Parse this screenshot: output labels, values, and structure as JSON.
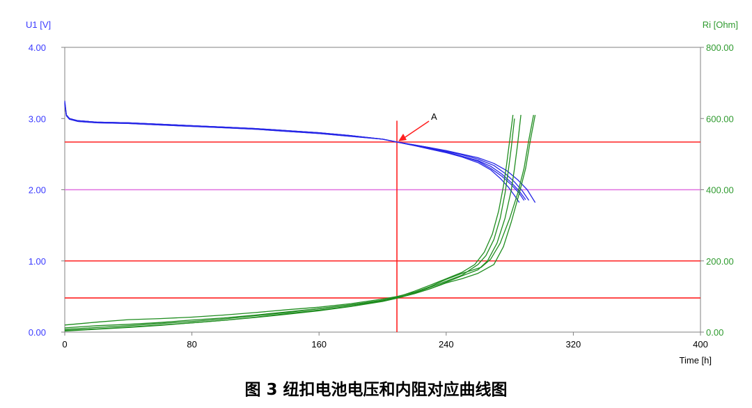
{
  "caption": "图 3 纽扣电池电压和内阻对应曲线图",
  "chart_data": {
    "type": "line",
    "title": "",
    "xlabel": "Time [h]",
    "ylabel_left": "U1 [V]",
    "ylabel_right": "Ri [Ohm]",
    "xlim": [
      0,
      400
    ],
    "ylim_left": [
      0,
      4
    ],
    "ylim_right": [
      0,
      800
    ],
    "x_ticks": [
      "0",
      "80",
      "160",
      "240",
      "320",
      "400"
    ],
    "y_left_ticks": [
      "0.00",
      "1.00",
      "2.00",
      "3.00",
      "4.00"
    ],
    "y_right_ticks": [
      "0.00",
      "200.00",
      "400.00",
      "600.00",
      "800.00"
    ],
    "grid": false,
    "colors": {
      "voltage": "#2626e6",
      "resistance": "#1e8c1e",
      "reference": "#ff2020",
      "threshold": "#e070e0",
      "left_axis": "#3a3aff",
      "right_axis": "#2e9a2e"
    },
    "reference_lines": [
      {
        "orientation": "horizontal",
        "axis": "left",
        "y": 2.67,
        "color": "#ff2020"
      },
      {
        "orientation": "horizontal",
        "axis": "left",
        "y": 2.0,
        "color": "#e070e0"
      },
      {
        "orientation": "horizontal",
        "axis": "left",
        "y": 1.0,
        "color": "#ff2020"
      },
      {
        "orientation": "horizontal",
        "axis": "left",
        "y": 0.48,
        "color": "#ff2020"
      },
      {
        "orientation": "vertical",
        "x": 209,
        "y_top": 2.97,
        "color": "#ff2020"
      }
    ],
    "annotations": [
      {
        "text": "A",
        "arrow_to": [
          209,
          2.67
        ],
        "color": "#ff2020"
      }
    ],
    "series": [
      {
        "axis": "left",
        "color": "#2626e6",
        "points": [
          [
            0,
            3.25
          ],
          [
            1,
            3.05
          ],
          [
            3,
            3.0
          ],
          [
            8,
            2.97
          ],
          [
            20,
            2.95
          ],
          [
            40,
            2.94
          ],
          [
            60,
            2.92
          ],
          [
            80,
            2.9
          ],
          [
            100,
            2.88
          ],
          [
            120,
            2.86
          ],
          [
            140,
            2.83
          ],
          [
            160,
            2.8
          ],
          [
            180,
            2.76
          ],
          [
            200,
            2.71
          ],
          [
            209,
            2.67
          ],
          [
            220,
            2.62
          ],
          [
            230,
            2.57
          ],
          [
            240,
            2.52
          ],
          [
            250,
            2.46
          ],
          [
            260,
            2.38
          ],
          [
            268,
            2.28
          ],
          [
            274,
            2.16
          ],
          [
            279,
            2.04
          ],
          [
            283,
            1.92
          ],
          [
            286,
            1.82
          ]
        ]
      },
      {
        "axis": "left",
        "color": "#2626e6",
        "points": [
          [
            0,
            3.2
          ],
          [
            1,
            3.04
          ],
          [
            3,
            2.99
          ],
          [
            8,
            2.96
          ],
          [
            20,
            2.94
          ],
          [
            40,
            2.93
          ],
          [
            60,
            2.91
          ],
          [
            80,
            2.89
          ],
          [
            100,
            2.87
          ],
          [
            120,
            2.85
          ],
          [
            140,
            2.82
          ],
          [
            160,
            2.79
          ],
          [
            180,
            2.75
          ],
          [
            200,
            2.71
          ],
          [
            209,
            2.67
          ],
          [
            220,
            2.62
          ],
          [
            230,
            2.58
          ],
          [
            240,
            2.53
          ],
          [
            250,
            2.47
          ],
          [
            260,
            2.41
          ],
          [
            268,
            2.33
          ],
          [
            275,
            2.22
          ],
          [
            281,
            2.1
          ],
          [
            286,
            1.98
          ],
          [
            290,
            1.86
          ]
        ]
      },
      {
        "axis": "left",
        "color": "#2626e6",
        "points": [
          [
            0,
            3.22
          ],
          [
            1,
            3.04
          ],
          [
            3,
            2.99
          ],
          [
            8,
            2.96
          ],
          [
            20,
            2.94
          ],
          [
            40,
            2.93
          ],
          [
            60,
            2.91
          ],
          [
            80,
            2.89
          ],
          [
            100,
            2.87
          ],
          [
            120,
            2.85
          ],
          [
            140,
            2.82
          ],
          [
            160,
            2.79
          ],
          [
            180,
            2.75
          ],
          [
            200,
            2.71
          ],
          [
            209,
            2.67
          ],
          [
            220,
            2.63
          ],
          [
            230,
            2.59
          ],
          [
            240,
            2.54
          ],
          [
            250,
            2.49
          ],
          [
            260,
            2.43
          ],
          [
            270,
            2.34
          ],
          [
            277,
            2.23
          ],
          [
            283,
            2.11
          ],
          [
            288,
            1.98
          ],
          [
            292,
            1.85
          ]
        ]
      },
      {
        "axis": "left",
        "color": "#2626e6",
        "points": [
          [
            0,
            3.23
          ],
          [
            1,
            3.05
          ],
          [
            3,
            3.0
          ],
          [
            8,
            2.97
          ],
          [
            20,
            2.95
          ],
          [
            40,
            2.94
          ],
          [
            60,
            2.92
          ],
          [
            80,
            2.9
          ],
          [
            100,
            2.88
          ],
          [
            120,
            2.86
          ],
          [
            140,
            2.83
          ],
          [
            160,
            2.8
          ],
          [
            180,
            2.76
          ],
          [
            200,
            2.71
          ],
          [
            209,
            2.67
          ],
          [
            220,
            2.63
          ],
          [
            230,
            2.59
          ],
          [
            240,
            2.55
          ],
          [
            250,
            2.5
          ],
          [
            260,
            2.45
          ],
          [
            270,
            2.37
          ],
          [
            278,
            2.27
          ],
          [
            285,
            2.14
          ],
          [
            291,
            2.0
          ],
          [
            296,
            1.82
          ]
        ]
      },
      {
        "axis": "left",
        "color": "#2626e6",
        "points": [
          [
            0,
            3.21
          ],
          [
            1,
            3.05
          ],
          [
            3,
            3.0
          ],
          [
            8,
            2.97
          ],
          [
            20,
            2.95
          ],
          [
            40,
            2.94
          ],
          [
            60,
            2.92
          ],
          [
            80,
            2.9
          ],
          [
            100,
            2.88
          ],
          [
            120,
            2.86
          ],
          [
            140,
            2.83
          ],
          [
            160,
            2.8
          ],
          [
            180,
            2.76
          ],
          [
            200,
            2.71
          ],
          [
            209,
            2.67
          ],
          [
            220,
            2.62
          ],
          [
            230,
            2.57
          ],
          [
            240,
            2.52
          ],
          [
            250,
            2.47
          ],
          [
            260,
            2.4
          ],
          [
            268,
            2.3
          ],
          [
            275,
            2.19
          ],
          [
            281,
            2.07
          ],
          [
            286,
            1.95
          ],
          [
            289,
            1.85
          ]
        ]
      },
      {
        "axis": "right",
        "color": "#1e8c1e",
        "points": [
          [
            0,
            5
          ],
          [
            20,
            9
          ],
          [
            40,
            14
          ],
          [
            60,
            20
          ],
          [
            80,
            26
          ],
          [
            100,
            33
          ],
          [
            120,
            42
          ],
          [
            140,
            52
          ],
          [
            160,
            62
          ],
          [
            180,
            73
          ],
          [
            200,
            87
          ],
          [
            209,
            96
          ],
          [
            220,
            110
          ],
          [
            230,
            126
          ],
          [
            240,
            143
          ],
          [
            250,
            160
          ],
          [
            260,
            190
          ],
          [
            265,
            215
          ],
          [
            270,
            260
          ],
          [
            274,
            320
          ],
          [
            277,
            390
          ],
          [
            279,
            450
          ],
          [
            281,
            520
          ],
          [
            283,
            600
          ]
        ]
      },
      {
        "axis": "right",
        "color": "#1e8c1e",
        "points": [
          [
            0,
            8
          ],
          [
            20,
            13
          ],
          [
            40,
            18
          ],
          [
            60,
            24
          ],
          [
            80,
            30
          ],
          [
            100,
            37
          ],
          [
            120,
            46
          ],
          [
            140,
            55
          ],
          [
            160,
            66
          ],
          [
            180,
            77
          ],
          [
            200,
            90
          ],
          [
            209,
            98
          ],
          [
            220,
            115
          ],
          [
            230,
            132
          ],
          [
            240,
            150
          ],
          [
            250,
            168
          ],
          [
            258,
            190
          ],
          [
            264,
            225
          ],
          [
            269,
            275
          ],
          [
            273,
            340
          ],
          [
            276,
            410
          ],
          [
            278,
            470
          ],
          [
            280,
            540
          ],
          [
            282,
            610
          ]
        ]
      },
      {
        "axis": "right",
        "color": "#1e8c1e",
        "points": [
          [
            0,
            3
          ],
          [
            20,
            8
          ],
          [
            40,
            13
          ],
          [
            60,
            19
          ],
          [
            80,
            26
          ],
          [
            100,
            33
          ],
          [
            120,
            41
          ],
          [
            140,
            50
          ],
          [
            160,
            60
          ],
          [
            180,
            72
          ],
          [
            200,
            86
          ],
          [
            209,
            95
          ],
          [
            220,
            108
          ],
          [
            230,
            122
          ],
          [
            240,
            140
          ],
          [
            250,
            158
          ],
          [
            260,
            175
          ],
          [
            266,
            200
          ],
          [
            272,
            250
          ],
          [
            277,
            320
          ],
          [
            281,
            400
          ],
          [
            283,
            460
          ],
          [
            285,
            530
          ],
          [
            287,
            610
          ]
        ]
      },
      {
        "axis": "right",
        "color": "#1e8c1e",
        "points": [
          [
            0,
            20
          ],
          [
            20,
            28
          ],
          [
            40,
            35
          ],
          [
            60,
            38
          ],
          [
            80,
            42
          ],
          [
            100,
            48
          ],
          [
            120,
            55
          ],
          [
            140,
            63
          ],
          [
            160,
            70
          ],
          [
            180,
            80
          ],
          [
            200,
            93
          ],
          [
            209,
            100
          ],
          [
            220,
            112
          ],
          [
            230,
            128
          ],
          [
            240,
            148
          ],
          [
            250,
            165
          ],
          [
            262,
            182
          ],
          [
            268,
            205
          ],
          [
            274,
            250
          ],
          [
            280,
            320
          ],
          [
            285,
            390
          ],
          [
            289,
            460
          ],
          [
            292,
            540
          ],
          [
            295,
            610
          ]
        ]
      },
      {
        "axis": "right",
        "color": "#1e8c1e",
        "points": [
          [
            0,
            12
          ],
          [
            20,
            18
          ],
          [
            40,
            22
          ],
          [
            60,
            27
          ],
          [
            80,
            34
          ],
          [
            100,
            40
          ],
          [
            120,
            48
          ],
          [
            140,
            57
          ],
          [
            160,
            66
          ],
          [
            180,
            76
          ],
          [
            200,
            88
          ],
          [
            209,
            97
          ],
          [
            220,
            108
          ],
          [
            230,
            122
          ],
          [
            240,
            138
          ],
          [
            250,
            150
          ],
          [
            260,
            165
          ],
          [
            270,
            190
          ],
          [
            276,
            240
          ],
          [
            281,
            310
          ],
          [
            286,
            390
          ],
          [
            290,
            460
          ],
          [
            293,
            540
          ],
          [
            296,
            610
          ]
        ]
      }
    ]
  }
}
